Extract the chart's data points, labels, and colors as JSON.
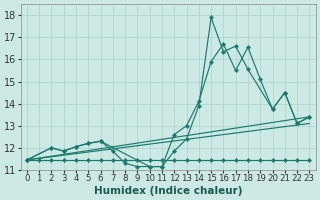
{
  "xlabel": "Humidex (Indice chaleur)",
  "xlim": [
    -0.5,
    23.5
  ],
  "ylim": [
    11.0,
    18.5
  ],
  "xticks": [
    0,
    1,
    2,
    3,
    4,
    5,
    6,
    7,
    8,
    9,
    10,
    11,
    12,
    13,
    14,
    15,
    16,
    17,
    18,
    19,
    20,
    21,
    22,
    23
  ],
  "yticks": [
    11,
    12,
    13,
    14,
    15,
    16,
    17,
    18
  ],
  "bg_color": "#cce9e4",
  "grid_color": "#aad4cd",
  "line_color": "#1a7a6e",
  "font_size_xlabel": 7.5,
  "font_size_ytick": 7,
  "font_size_xtick": 6.2,
  "line1_x": [
    0,
    1,
    2,
    3,
    4,
    5,
    6,
    7,
    8,
    9,
    10,
    11,
    12,
    13,
    14,
    15,
    16,
    17,
    18,
    19,
    20,
    21,
    22,
    23
  ],
  "line1_y": [
    11.45,
    11.45,
    11.45,
    11.45,
    11.45,
    11.45,
    11.45,
    11.45,
    11.45,
    11.45,
    11.45,
    11.45,
    11.45,
    11.45,
    11.45,
    11.45,
    11.45,
    11.45,
    11.45,
    11.45,
    11.45,
    11.45,
    11.45,
    11.45
  ],
  "line2_x": [
    0,
    2,
    3,
    4,
    5,
    6,
    7,
    8,
    9,
    10,
    11,
    12,
    13,
    14,
    15,
    16,
    17,
    18,
    20,
    21,
    22,
    23
  ],
  "line2_y": [
    11.45,
    12.0,
    11.85,
    12.05,
    12.2,
    12.3,
    11.85,
    11.3,
    11.15,
    11.15,
    11.15,
    11.85,
    12.4,
    13.9,
    17.9,
    16.35,
    16.6,
    15.55,
    13.75,
    14.5,
    13.1,
    13.4
  ],
  "line3_x": [
    0,
    2,
    3,
    4,
    5,
    6,
    10,
    11,
    12,
    13,
    14,
    15,
    16,
    17,
    18,
    19,
    20,
    21,
    22,
    23
  ],
  "line3_y": [
    11.45,
    12.0,
    11.85,
    12.05,
    12.2,
    12.3,
    11.15,
    11.15,
    12.6,
    13.0,
    14.1,
    15.9,
    16.7,
    15.5,
    16.55,
    15.1,
    13.75,
    14.5,
    13.1,
    13.4
  ],
  "line4_x": [
    0,
    23
  ],
  "line4_y": [
    11.45,
    13.4
  ],
  "line5_x": [
    0,
    23
  ],
  "line5_y": [
    11.45,
    13.1
  ]
}
